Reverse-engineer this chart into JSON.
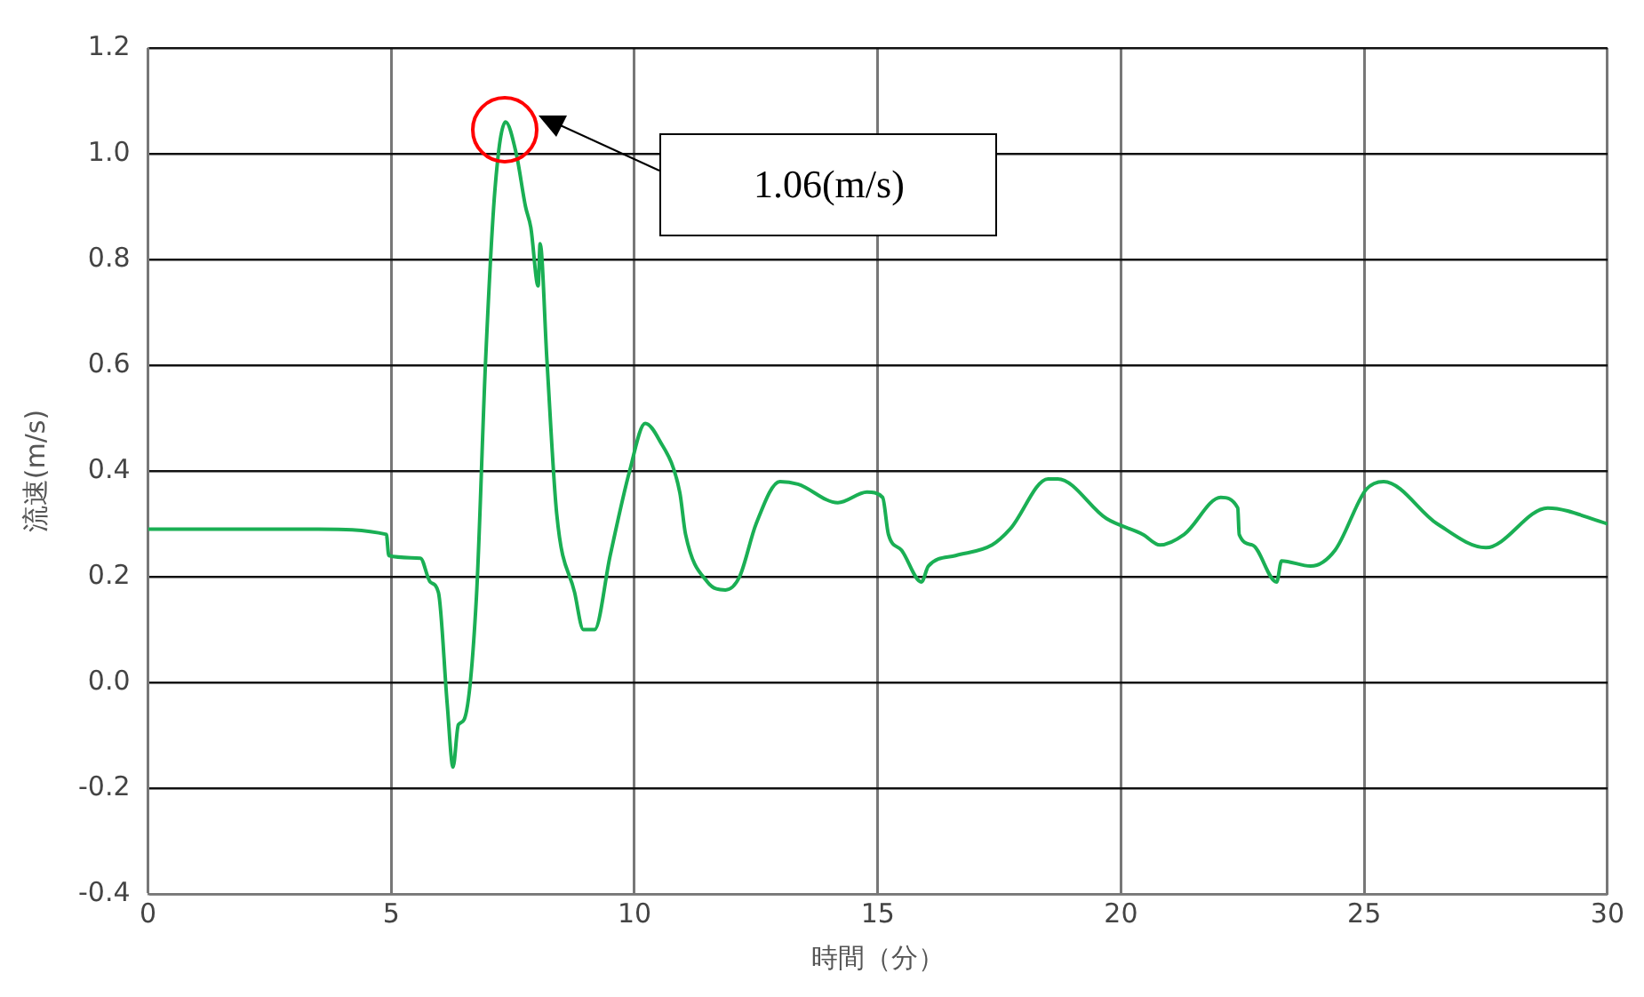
{
  "chart_data": {
    "type": "line",
    "xlabel": "時間（分）",
    "ylabel": "流速(m/s)",
    "xlim": [
      0,
      30
    ],
    "xticks": [
      0,
      5,
      10,
      15,
      20,
      25,
      30
    ],
    "ylim": [
      -0.4,
      1.2
    ],
    "yticks": [
      {
        "value": -0.4,
        "label": "-0.4"
      },
      {
        "value": -0.2,
        "label": "-0.2"
      },
      {
        "value": 0,
        "label": "0.0"
      },
      {
        "value": 0.2,
        "label": "0.2"
      },
      {
        "value": 0.4,
        "label": "0.4"
      },
      {
        "value": 0.6,
        "label": "0.6"
      },
      {
        "value": 0.8,
        "label": "0.8"
      },
      {
        "value": 1,
        "label": "1.0"
      },
      {
        "value": 1.2,
        "label": "1.2"
      }
    ],
    "grid": true,
    "legend": false,
    "marker": "none",
    "line_style": "solid",
    "annotations": [
      "1.06(m/s)"
    ],
    "series": [
      {
        "color": "#1aaf54",
        "x": [
          0,
          3.5,
          4.9,
          4.95,
          5.6,
          5.8,
          5.97,
          6.15,
          6.27,
          6.38,
          6.5,
          6.75,
          6.94,
          7.13,
          7.35,
          7.57,
          7.76,
          7.87,
          8.02,
          8.06,
          8.2,
          8.4,
          8.77,
          8.95,
          9.18,
          9.5,
          9.9,
          10.22,
          10.5,
          10.93,
          11.05,
          11.5,
          11.87,
          12.16,
          12.5,
          12.99,
          13.36,
          14.18,
          14.78,
          15.1,
          15.22,
          15.49,
          15.9,
          16.04,
          16.6,
          17.35,
          17.72,
          18.5,
          18.7,
          19.7,
          20.45,
          20.8,
          21.3,
          22.05,
          22.4,
          22.43,
          22.7,
          23.2,
          23.3,
          23.9,
          24.4,
          25.04,
          25.4,
          26.5,
          27.5,
          28.77,
          30
        ],
        "values": [
          0.29,
          0.29,
          0.28,
          0.24,
          0.235,
          0.19,
          0.17,
          -0.04,
          -0.16,
          -0.08,
          -0.07,
          0.16,
          0.61,
          0.93,
          1.06,
          1.0,
          0.9,
          0.86,
          0.75,
          0.83,
          0.61,
          0.32,
          0.17,
          0.1,
          0.1,
          0.24,
          0.4,
          0.49,
          0.46,
          0.36,
          0.28,
          0.19,
          0.175,
          0.2,
          0.3,
          0.38,
          0.375,
          0.34,
          0.36,
          0.35,
          0.28,
          0.25,
          0.19,
          0.22,
          0.24,
          0.26,
          0.29,
          0.385,
          0.385,
          0.31,
          0.28,
          0.26,
          0.28,
          0.35,
          0.33,
          0.28,
          0.26,
          0.19,
          0.23,
          0.22,
          0.25,
          0.365,
          0.38,
          0.3,
          0.255,
          0.33,
          0.3
        ]
      }
    ]
  }
}
